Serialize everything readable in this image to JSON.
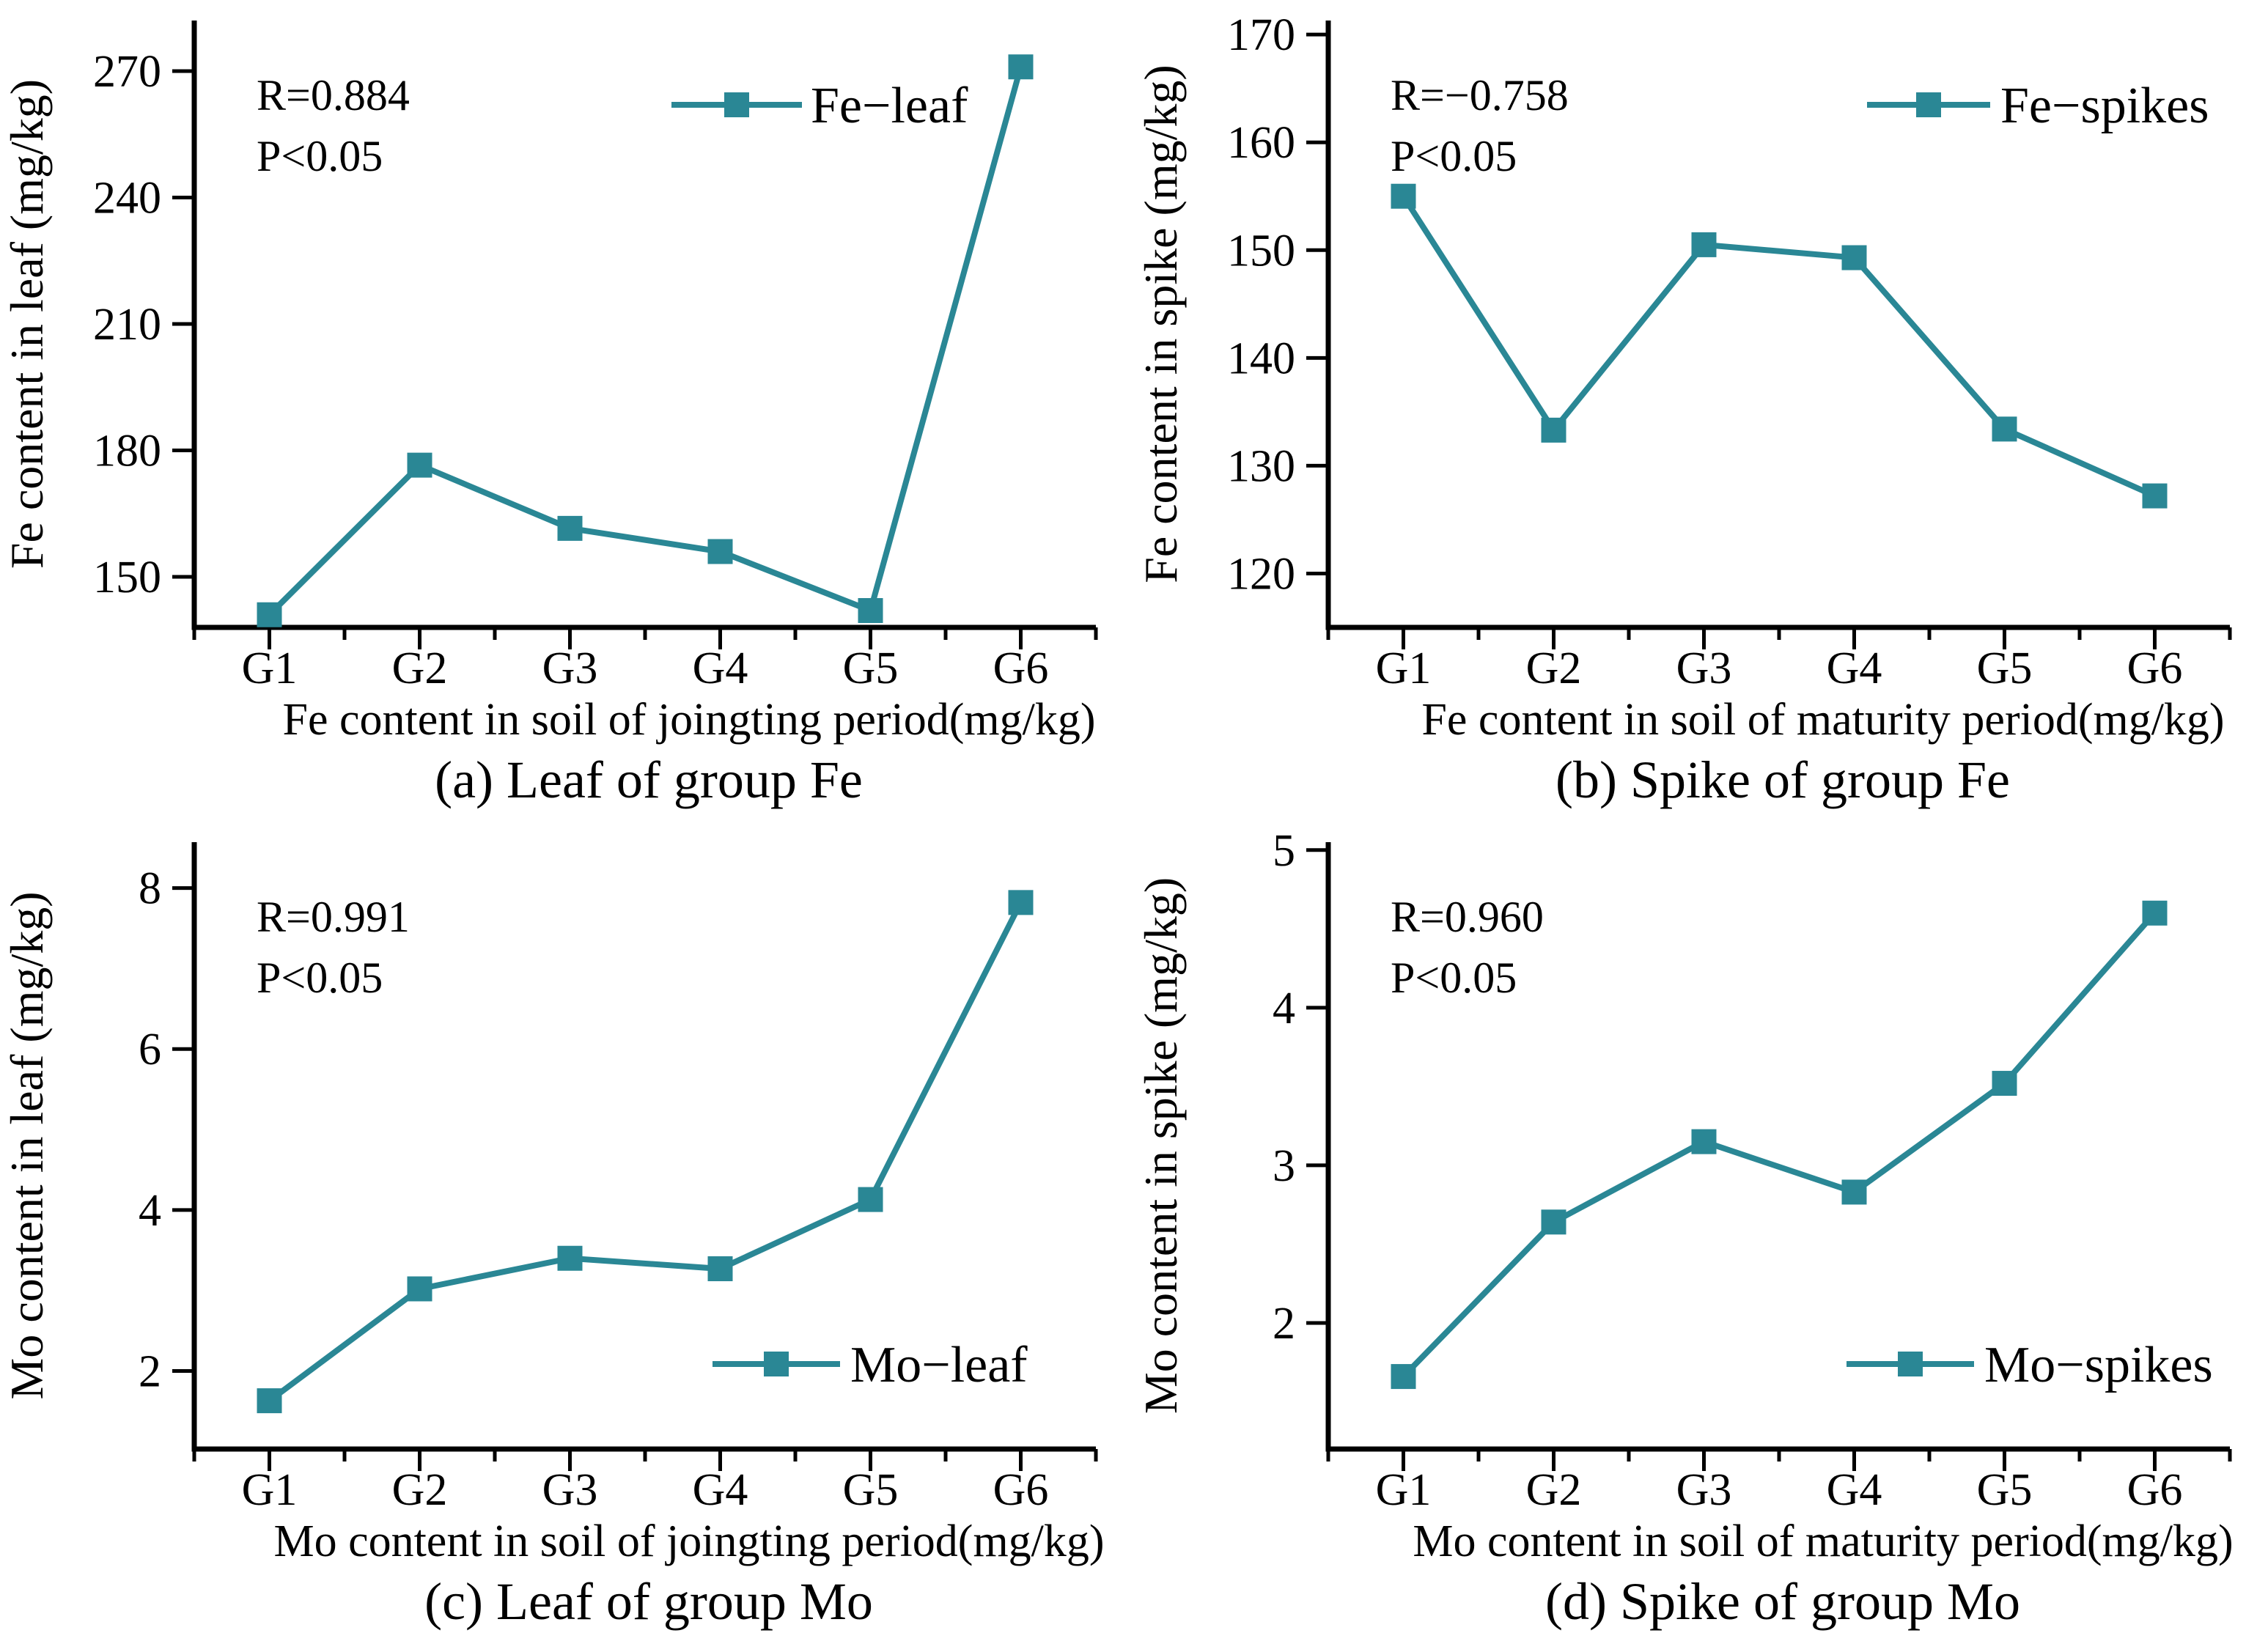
{
  "figure": {
    "background_color": "#ffffff",
    "accent_color": "#2a8795",
    "axis_color": "#000000",
    "text_color": "#000000"
  },
  "chart_data": [
    {
      "id": "a",
      "type": "line",
      "title": "(a) Leaf of group Fe",
      "xlabel": "Fe content in soil of joingting period(mg/kg)",
      "ylabel": "Fe content in leaf (mg/kg)",
      "categories": [
        "G1",
        "G2",
        "G3",
        "G4",
        "G5",
        "G6"
      ],
      "series": [
        {
          "name": "Fe−leaf",
          "values": [
            141,
            176.5,
            161.5,
            156,
            142,
            271
          ]
        }
      ],
      "yticks": [
        150,
        180,
        210,
        240,
        270
      ],
      "ylim": [
        138,
        282
      ],
      "annotation": [
        "R=0.884",
        "P<0.05"
      ],
      "legend_position": "top-right",
      "grid": false
    },
    {
      "id": "b",
      "type": "line",
      "title": "(b)  Spike of group Fe",
      "xlabel": "Fe content in soil of maturity period(mg/kg)",
      "ylabel": "Fe content in spike (mg/kg)",
      "categories": [
        "G1",
        "G2",
        "G3",
        "G4",
        "G5",
        "G6"
      ],
      "series": [
        {
          "name": "Fe−spikes",
          "values": [
            155,
            133.3,
            150.5,
            149.3,
            133.4,
            127.2
          ]
        }
      ],
      "yticks": [
        120,
        130,
        140,
        150,
        160,
        170
      ],
      "ylim": [
        115,
        171.3
      ],
      "annotation": [
        "R=−0.758",
        "P<0.05"
      ],
      "legend_position": "top-right",
      "grid": false
    },
    {
      "id": "c",
      "type": "line",
      "title": "(c) Leaf of group Mo",
      "xlabel": "Mo content in soil of joingting period(mg/kg)",
      "ylabel": "Mo content in leaf (mg/kg)",
      "categories": [
        "G1",
        "G2",
        "G3",
        "G4",
        "G5",
        "G6"
      ],
      "series": [
        {
          "name": "Mo−leaf",
          "values": [
            1.63,
            3.02,
            3.4,
            3.27,
            4.13,
            7.82
          ]
        }
      ],
      "yticks": [
        2,
        4,
        6,
        8
      ],
      "ylim": [
        1.03,
        8.57
      ],
      "annotation": [
        "R=0.991",
        "P<0.05"
      ],
      "legend_position": "bottom-right",
      "grid": false
    },
    {
      "id": "d",
      "type": "line",
      "title": "(d)  Spike of group Mo",
      "xlabel": "Mo content in soil of maturity period(mg/kg)",
      "ylabel": "Mo content in spike (mg/kg)",
      "categories": [
        "G1",
        "G2",
        "G3",
        "G4",
        "G5",
        "G6"
      ],
      "series": [
        {
          "name": "Mo−spikes",
          "values": [
            1.66,
            2.64,
            3.15,
            2.83,
            3.52,
            4.6
          ]
        }
      ],
      "yticks": [
        2,
        3,
        4,
        5
      ],
      "ylim": [
        1.2,
        5.05
      ],
      "annotation": [
        "R=0.960",
        "P<0.05"
      ],
      "legend_position": "bottom-right",
      "grid": false
    }
  ]
}
